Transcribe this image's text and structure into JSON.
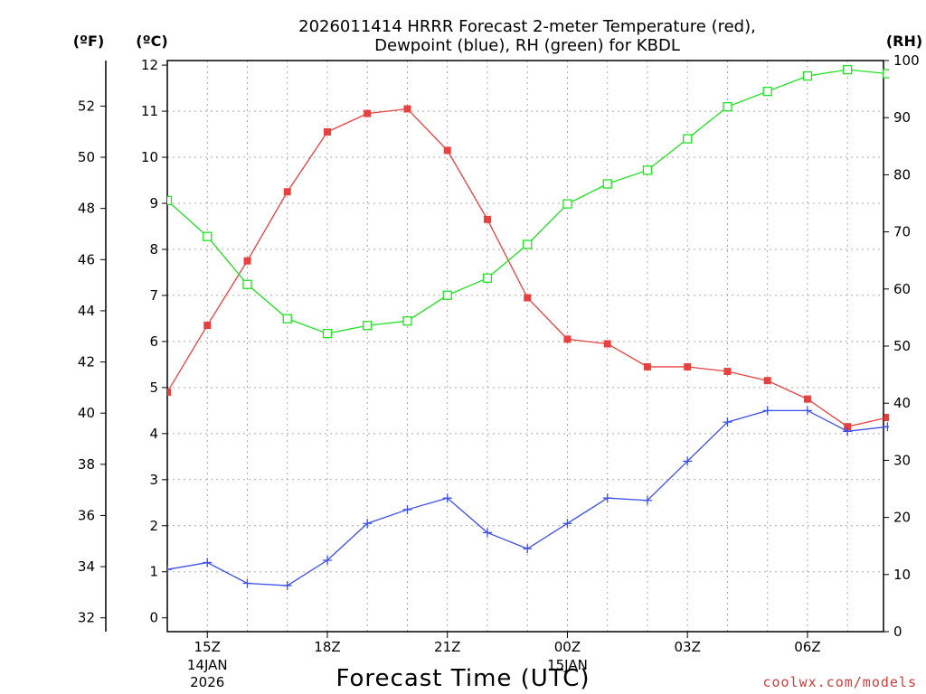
{
  "chart_data": {
    "type": "line",
    "title_lines": [
      "2026011414 HRRR Forecast 2-meter Temperature (red),",
      "Dewpoint (blue), RH (green) for KBDL"
    ],
    "xlabel": "Forecast Time (UTC)",
    "credit": "coolwx.com/models",
    "axes": {
      "celsius": {
        "unit_label": "(ºC)",
        "range": [
          -0.3,
          12.1
        ],
        "ticks": [
          0,
          1,
          2,
          3,
          4,
          5,
          6,
          7,
          8,
          9,
          10,
          11,
          12
        ]
      },
      "fahrenheit": {
        "unit_label": "(ºF)",
        "ticks": [
          32,
          34,
          36,
          38,
          40,
          42,
          44,
          46,
          48,
          50,
          52
        ]
      },
      "rh": {
        "unit_label": "(RH)",
        "range": [
          0,
          100
        ],
        "ticks": [
          0,
          10,
          20,
          30,
          40,
          50,
          60,
          70,
          80,
          90,
          100
        ]
      }
    },
    "x": {
      "hours": [
        14,
        15,
        16,
        17,
        18,
        19,
        20,
        21,
        22,
        23,
        24,
        25,
        26,
        27,
        28,
        29,
        30,
        31,
        32
      ],
      "range": [
        14,
        31.9
      ],
      "ticks": [
        {
          "hour": 15,
          "label": "15Z",
          "sub": [
            "14JAN",
            "2026"
          ]
        },
        {
          "hour": 18,
          "label": "18Z",
          "sub": []
        },
        {
          "hour": 21,
          "label": "21Z",
          "sub": []
        },
        {
          "hour": 24,
          "label": "00Z",
          "sub": [
            "15JAN"
          ]
        },
        {
          "hour": 27,
          "label": "03Z",
          "sub": []
        },
        {
          "hour": 30,
          "label": "06Z",
          "sub": []
        }
      ]
    },
    "series": [
      {
        "name": "Temperature",
        "axis": "celsius",
        "color": "#e8403f",
        "marker": "filled-square",
        "values": [
          4.9,
          6.35,
          7.75,
          9.25,
          10.55,
          10.95,
          11.05,
          10.15,
          8.65,
          6.95,
          6.05,
          5.95,
          5.45,
          5.45,
          5.35,
          5.15,
          4.75,
          4.15,
          4.35
        ]
      },
      {
        "name": "Dewpoint",
        "axis": "celsius",
        "color": "#3c4fe8",
        "marker": "plus",
        "values": [
          1.05,
          1.2,
          0.75,
          0.7,
          1.25,
          2.05,
          2.35,
          2.6,
          1.85,
          1.5,
          2.05,
          2.6,
          2.55,
          3.4,
          4.25,
          4.5,
          4.5,
          4.05,
          4.15
        ]
      },
      {
        "name": "Relative Humidity",
        "axis": "rh",
        "color": "#22e022",
        "marker": "open-square",
        "values": [
          75.5,
          69.2,
          60.8,
          54.8,
          52.2,
          53.6,
          54.4,
          58.9,
          61.9,
          67.8,
          74.9,
          78.4,
          80.8,
          86.3,
          91.9,
          94.6,
          97.3,
          98.4,
          97.7
        ]
      }
    ]
  }
}
